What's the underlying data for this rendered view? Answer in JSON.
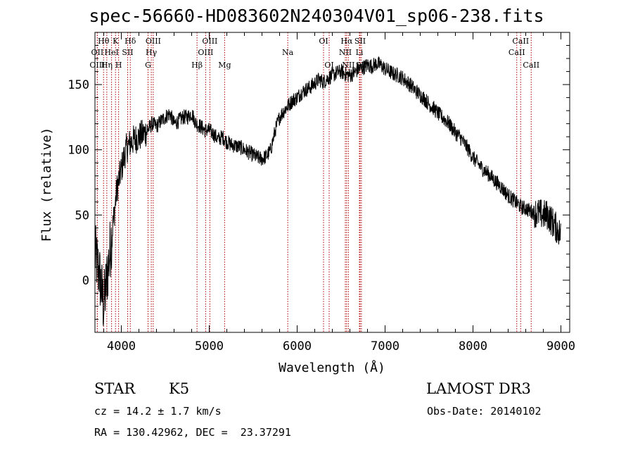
{
  "title": "spec-56660-HD083602N240304V01_sp06-238.fits",
  "chart_data": {
    "type": "line",
    "title": "spec-56660-HD083602N240304V01_sp06-238.fits",
    "xlabel": "Wavelength (Å)",
    "ylabel": "Flux (relative)",
    "xlim": [
      3700,
      9100
    ],
    "ylim": [
      -40,
      190
    ],
    "xticks": [
      4000,
      5000,
      6000,
      7000,
      8000,
      9000
    ],
    "yticks": [
      0,
      50,
      100,
      150
    ],
    "series": [
      {
        "name": "flux",
        "x": [
          3700,
          3750,
          3800,
          3850,
          3900,
          3950,
          4000,
          4050,
          4100,
          4150,
          4200,
          4250,
          4300,
          4350,
          4400,
          4450,
          4500,
          4550,
          4600,
          4650,
          4700,
          4750,
          4800,
          4850,
          4900,
          4950,
          5000,
          5050,
          5100,
          5150,
          5200,
          5250,
          5300,
          5350,
          5400,
          5450,
          5500,
          5550,
          5600,
          5650,
          5700,
          5750,
          5800,
          5850,
          5900,
          5950,
          6000,
          6050,
          6100,
          6150,
          6200,
          6250,
          6300,
          6350,
          6400,
          6450,
          6500,
          6550,
          6600,
          6650,
          6700,
          6750,
          6800,
          6850,
          6900,
          6950,
          7000,
          7050,
          7100,
          7150,
          7200,
          7250,
          7300,
          7350,
          7400,
          7450,
          7500,
          7550,
          7600,
          7650,
          7700,
          7750,
          7800,
          7850,
          7900,
          7950,
          8000,
          8050,
          8100,
          8150,
          8200,
          8250,
          8300,
          8350,
          8400,
          8450,
          8500,
          8550,
          8600,
          8650,
          8700,
          8750,
          8800,
          8850,
          8900,
          8950,
          9000
        ],
        "y": [
          20,
          5,
          -20,
          10,
          40,
          70,
          85,
          100,
          105,
          108,
          110,
          112,
          115,
          120,
          118,
          122,
          125,
          128,
          120,
          122,
          125,
          125,
          128,
          120,
          118,
          115,
          115,
          112,
          108,
          110,
          106,
          104,
          103,
          102,
          100,
          98,
          96,
          94,
          93,
          95,
          100,
          115,
          125,
          130,
          134,
          138,
          140,
          144,
          146,
          148,
          151,
          154,
          152,
          155,
          157,
          159,
          160,
          158,
          157,
          159,
          162,
          163,
          165,
          164,
          166,
          165,
          162,
          160,
          158,
          157,
          155,
          152,
          149,
          145,
          142,
          139,
          135,
          132,
          128,
          125,
          122,
          118,
          113,
          110,
          105,
          100,
          94,
          90,
          86,
          83,
          80,
          76,
          73,
          69,
          65,
          62,
          59,
          56,
          55,
          53,
          52,
          51,
          50,
          50,
          45,
          40,
          35
        ]
      }
    ],
    "lines": [
      {
        "label": "Hθ",
        "x": 3798,
        "row": 1
      },
      {
        "label": "OII",
        "x": 3727,
        "row": 2
      },
      {
        "label": "OIII",
        "x": 3727,
        "row": 3
      },
      {
        "label": "K",
        "x": 3934,
        "row": 1
      },
      {
        "label": "HeI",
        "x": 3889,
        "row": 2
      },
      {
        "label": "Hη",
        "x": 3835,
        "row": 3
      },
      {
        "label": "Hδ",
        "x": 4102,
        "row": 1
      },
      {
        "label": "SII",
        "x": 4072,
        "row": 2
      },
      {
        "label": "H",
        "x": 3969,
        "row": 3
      },
      {
        "label": "OIII",
        "x": 4363,
        "row": 1
      },
      {
        "label": "Hγ",
        "x": 4341,
        "row": 2
      },
      {
        "label": "G",
        "x": 4304,
        "row": 3
      },
      {
        "label": "OIII",
        "x": 5007,
        "row": 1
      },
      {
        "label": "OIII",
        "x": 4959,
        "row": 2
      },
      {
        "label": "Hβ",
        "x": 4861,
        "row": 3
      },
      {
        "label": "Mg",
        "x": 5175,
        "row": 3
      },
      {
        "label": "Na",
        "x": 5893,
        "row": 2
      },
      {
        "label": "OI",
        "x": 6300,
        "row": 1
      },
      {
        "label": "OI",
        "x": 6364,
        "row": 3
      },
      {
        "label": "Hα",
        "x": 6563,
        "row": 1
      },
      {
        "label": "SII",
        "x": 6716,
        "row": 1
      },
      {
        "label": "NII",
        "x": 6548,
        "row": 2
      },
      {
        "label": "Li",
        "x": 6708,
        "row": 2
      },
      {
        "label": "NII",
        "x": 6583,
        "row": 3
      },
      {
        "label": "SII",
        "x": 6731,
        "row": 3
      },
      {
        "label": "CaII",
        "x": 8542,
        "row": 1
      },
      {
        "label": "CaII",
        "x": 8498,
        "row": 2
      },
      {
        "label": "CaII",
        "x": 8662,
        "row": 3
      }
    ]
  },
  "info": {
    "class": "STAR",
    "subclass": "K5",
    "survey": "LAMOST DR3",
    "cz": "cz = 14.2 ± 1.7 km/s",
    "obs_date": "Obs-Date: 20140102",
    "radec": "RA = 130.42962, DEC =  23.37291"
  }
}
